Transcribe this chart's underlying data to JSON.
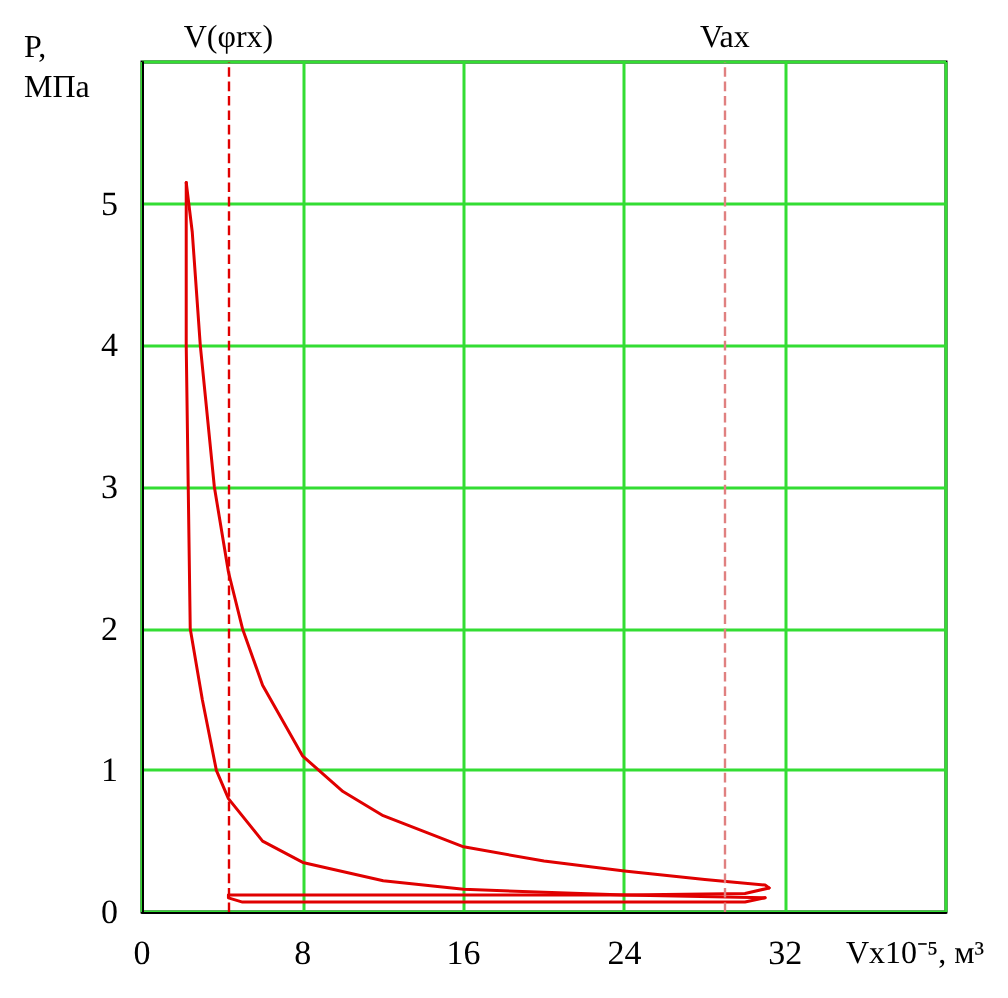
{
  "chart_data": {
    "type": "line",
    "xlabel": "Vx10⁻⁵, м³",
    "ylabel": "P, МПа",
    "series": [
      {
        "color": "#e00000",
        "x": [
          2.2,
          2.2,
          2.3,
          2.4,
          3,
          3.7,
          4.3,
          6,
          8,
          12,
          16,
          24,
          31
        ],
        "values": [
          5.15,
          4,
          3,
          2,
          1.5,
          1,
          0.8,
          0.5,
          0.35,
          0.22,
          0.16,
          0.12,
          0.1
        ]
      },
      {
        "color": "#e00000",
        "x": [
          2.2,
          2.5,
          2.9,
          3.6,
          4.3,
          5,
          6,
          8,
          10,
          12,
          16,
          20,
          24,
          28,
          31,
          31.2
        ],
        "values": [
          5.15,
          4.8,
          4,
          3,
          2.4,
          2,
          1.6,
          1.1,
          0.85,
          0.68,
          0.46,
          0.36,
          0.29,
          0.23,
          0.19,
          0.17
        ]
      },
      {
        "color": "#e00000",
        "x": [
          4.3,
          8,
          16,
          24,
          30,
          31.2
        ],
        "values": [
          0.12,
          0.12,
          0.12,
          0.12,
          0.13,
          0.17
        ]
      },
      {
        "color": "#e00000",
        "x": [
          4.3,
          4.3,
          5,
          16,
          24,
          30,
          31
        ],
        "values": [
          0.12,
          0.1,
          0.07,
          0.07,
          0.07,
          0.07,
          0.1
        ]
      }
    ],
    "xlim": [
      0,
      40
    ],
    "xticks": [
      0,
      8,
      16,
      24,
      32
    ],
    "ylim": [
      0,
      6
    ],
    "yticks": [
      0,
      1,
      2,
      3,
      4,
      5
    ],
    "grid": true,
    "marker": "none",
    "line_style": "solid",
    "ref_lines": [
      {
        "axis": "x",
        "value": 4.3,
        "label": "V(φrx)",
        "color": "#e00000",
        "line_style": "dashed"
      },
      {
        "axis": "x",
        "value": 29,
        "label": "Vax",
        "color": "#e08080",
        "line_style": "dashed"
      }
    ]
  }
}
